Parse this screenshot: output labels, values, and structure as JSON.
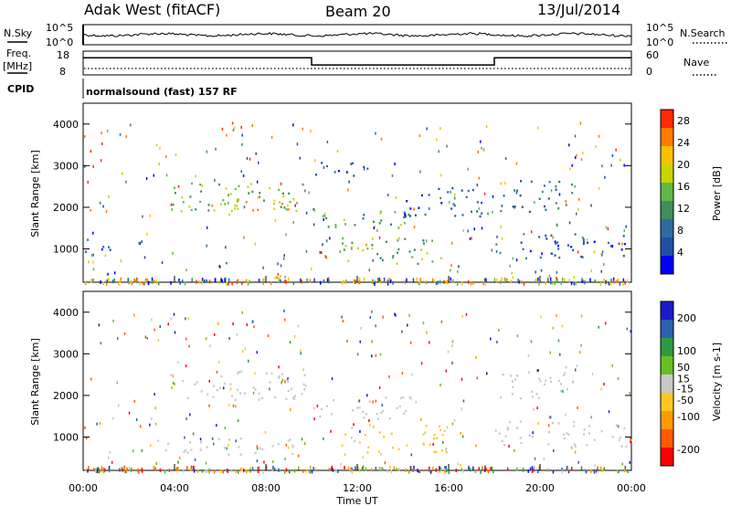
{
  "header": {
    "title": "Adak West (fitACF)",
    "beam": "Beam 20",
    "date": "13/Jul/2014"
  },
  "noise_panel": {
    "left_label": "N.Sky",
    "right_label": "N.Search",
    "ticks_left": [
      "10^5",
      "10^0"
    ],
    "ticks_right": [
      "10^5",
      "10^0"
    ]
  },
  "freq_panel": {
    "left_label_1": "Freq.",
    "left_label_2": "[MHz]",
    "right_label": "Nave",
    "ticks_left": [
      "18",
      "8"
    ],
    "ticks_right": [
      "60",
      "0"
    ],
    "freq_steps": [
      {
        "from_hour": 0,
        "to_hour": 10,
        "level": 0.72
      },
      {
        "from_hour": 10,
        "to_hour": 18,
        "level": 0.42
      },
      {
        "from_hour": 18,
        "to_hour": 24,
        "level": 0.72
      }
    ]
  },
  "cpid": {
    "label": "CPID",
    "program": "normalsound (fast) 157 RF"
  },
  "axes": {
    "ylabel": "Slant Range [km]",
    "xlabel": "Time UT",
    "yticks": [
      "4000",
      "3000",
      "2000",
      "1000"
    ],
    "xticks": [
      "00:00",
      "04:00",
      "08:00",
      "12:00",
      "16:00",
      "20:00",
      "00:00"
    ]
  },
  "chart_data": [
    {
      "type": "heatmap",
      "panel": "power",
      "xlabel": "Time UT",
      "ylabel": "Slant Range [km]",
      "xlim_hours": [
        0,
        24
      ],
      "ylim_km": [
        200,
        4500
      ],
      "colorbar": {
        "label": "Power [dB]",
        "ticks": [
          "28",
          "24",
          "20",
          "16",
          "12",
          "8",
          "4"
        ],
        "range": [
          0,
          30
        ],
        "colors": [
          "#0000ff",
          "#1f4fa8",
          "#2e6b9e",
          "#3f8f5a",
          "#5fb84a",
          "#c8d400",
          "#ffc000",
          "#ff7a00",
          "#ff2a00"
        ]
      },
      "echo_regions": [
        {
          "t0": 0.0,
          "t1": 1.6,
          "r0": 900,
          "r1": 1250,
          "power": 6
        },
        {
          "t0": 3.8,
          "t1": 9.8,
          "r0": 1900,
          "r1": 2600,
          "power": 15
        },
        {
          "t0": 5.0,
          "t1": 9.5,
          "r0": 1950,
          "r1": 2300,
          "power": 21
        },
        {
          "t0": 5.6,
          "t1": 6.4,
          "r0": 500,
          "r1": 700,
          "power": 14
        },
        {
          "t0": 10.0,
          "t1": 14.5,
          "r0": 1450,
          "r1": 2000,
          "power": 13
        },
        {
          "t0": 10.0,
          "t1": 12.5,
          "r0": 2700,
          "r1": 3100,
          "power": 5
        },
        {
          "t0": 11.2,
          "t1": 16.0,
          "r0": 650,
          "r1": 1300,
          "power": 14
        },
        {
          "t0": 14.0,
          "t1": 17.8,
          "r0": 1800,
          "r1": 2500,
          "power": 7
        },
        {
          "t0": 18.2,
          "t1": 21.5,
          "r0": 1900,
          "r1": 2700,
          "power": 9
        },
        {
          "t0": 18.0,
          "t1": 24.0,
          "r0": 800,
          "r1": 1400,
          "power": 6
        }
      ]
    },
    {
      "type": "heatmap",
      "panel": "velocity",
      "xlabel": "Time UT",
      "ylabel": "Slant Range [km]",
      "xlim_hours": [
        0,
        24
      ],
      "ylim_km": [
        200,
        4500
      ],
      "colorbar": {
        "label": "Velocity [m s-1]",
        "ticks": [
          "200",
          "100",
          "50",
          "15",
          "-15",
          "-50",
          "-100",
          "-200"
        ],
        "range": [
          -250,
          250
        ],
        "colors": [
          "#ff0000",
          "#ff5a00",
          "#ff9a00",
          "#ffc820",
          "#c8c8c8",
          "#66c020",
          "#2e9a40",
          "#2e5fb0",
          "#1a1ac8"
        ]
      },
      "echo_regions": [
        {
          "t0": 3.8,
          "t1": 9.8,
          "r0": 1900,
          "r1": 2600,
          "velocity": 0
        },
        {
          "t0": 10.0,
          "t1": 14.5,
          "r0": 1450,
          "r1": 2000,
          "velocity": 0
        },
        {
          "t0": 11.2,
          "t1": 16.0,
          "r0": 650,
          "r1": 1300,
          "velocity": -40
        },
        {
          "t0": 18.2,
          "t1": 21.5,
          "r0": 1900,
          "r1": 2700,
          "velocity": 0
        },
        {
          "t0": 18.0,
          "t1": 24.0,
          "r0": 800,
          "r1": 1400,
          "velocity": 0
        },
        {
          "t0": 3.0,
          "t1": 9.5,
          "r0": 600,
          "r1": 1000,
          "velocity": 0
        }
      ]
    }
  ]
}
